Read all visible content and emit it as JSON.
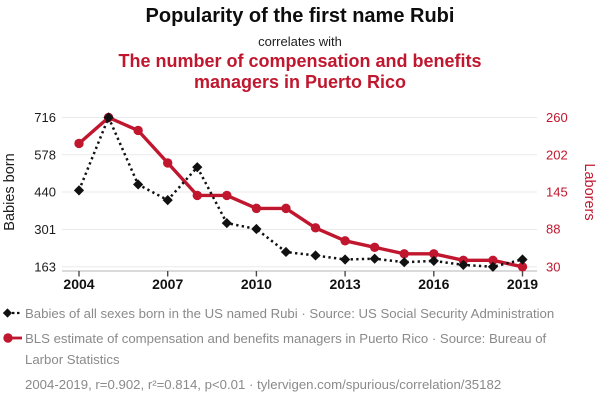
{
  "header": {
    "title": "Popularity of the first name Rubi",
    "subtitle": "correlates with",
    "correlate_title": "The number of compensation and benefits managers in Puerto Rico"
  },
  "chart_data": {
    "type": "line",
    "x": [
      2004,
      2005,
      2006,
      2007,
      2008,
      2009,
      2010,
      2011,
      2012,
      2013,
      2014,
      2015,
      2016,
      2017,
      2018,
      2019
    ],
    "x_ticks": [
      2004,
      2007,
      2010,
      2013,
      2016,
      2019
    ],
    "series": [
      {
        "id": "babies",
        "name": "Babies of all sexes born in the US named Rubi",
        "axis": "left",
        "color": "#111111",
        "style": "dashed",
        "marker": "diamond",
        "values": [
          446,
          716,
          468,
          410,
          532,
          325,
          303,
          218,
          205,
          190,
          193,
          180,
          185,
          170,
          163,
          190
        ]
      },
      {
        "id": "laborers",
        "name": "BLS estimate of compensation and benefits managers in Puerto Rico",
        "axis": "right",
        "color": "#c0172f",
        "style": "solid",
        "marker": "circle",
        "values": [
          220,
          260,
          240,
          190,
          140,
          140,
          120,
          120,
          90,
          70,
          60,
          50,
          50,
          40,
          40,
          30
        ]
      }
    ],
    "ylabel_left": "Babies born",
    "ylabel_right": "Laborers",
    "y_ticks_left": [
      163,
      301,
      440,
      578,
      716
    ],
    "y_ticks_right": [
      30,
      88,
      145,
      202,
      260
    ],
    "ylim_left": [
      163,
      716
    ],
    "ylim_right": [
      30,
      260
    ],
    "grid": true,
    "legend_position": "bottom-left"
  },
  "legend": {
    "items": [
      {
        "label": "Babies of all sexes born in the US named Rubi · Source: US Social Security Administration",
        "marker": "diamond-dashed",
        "color": "#111111"
      },
      {
        "label": "BLS estimate of compensation and benefits managers in Puerto Rico · Source: Bureau of Larbor Statistics",
        "marker": "circle-solid",
        "color": "#c0172f"
      }
    ]
  },
  "footer": {
    "text": "2004-2019, r=0.902, r²=0.814, p<0.01 · tylervigen.com/spurious/correlation/35182"
  },
  "colors": {
    "accent_red": "#c0172f",
    "text_gray": "#8a8a8a",
    "series_black": "#111111"
  }
}
